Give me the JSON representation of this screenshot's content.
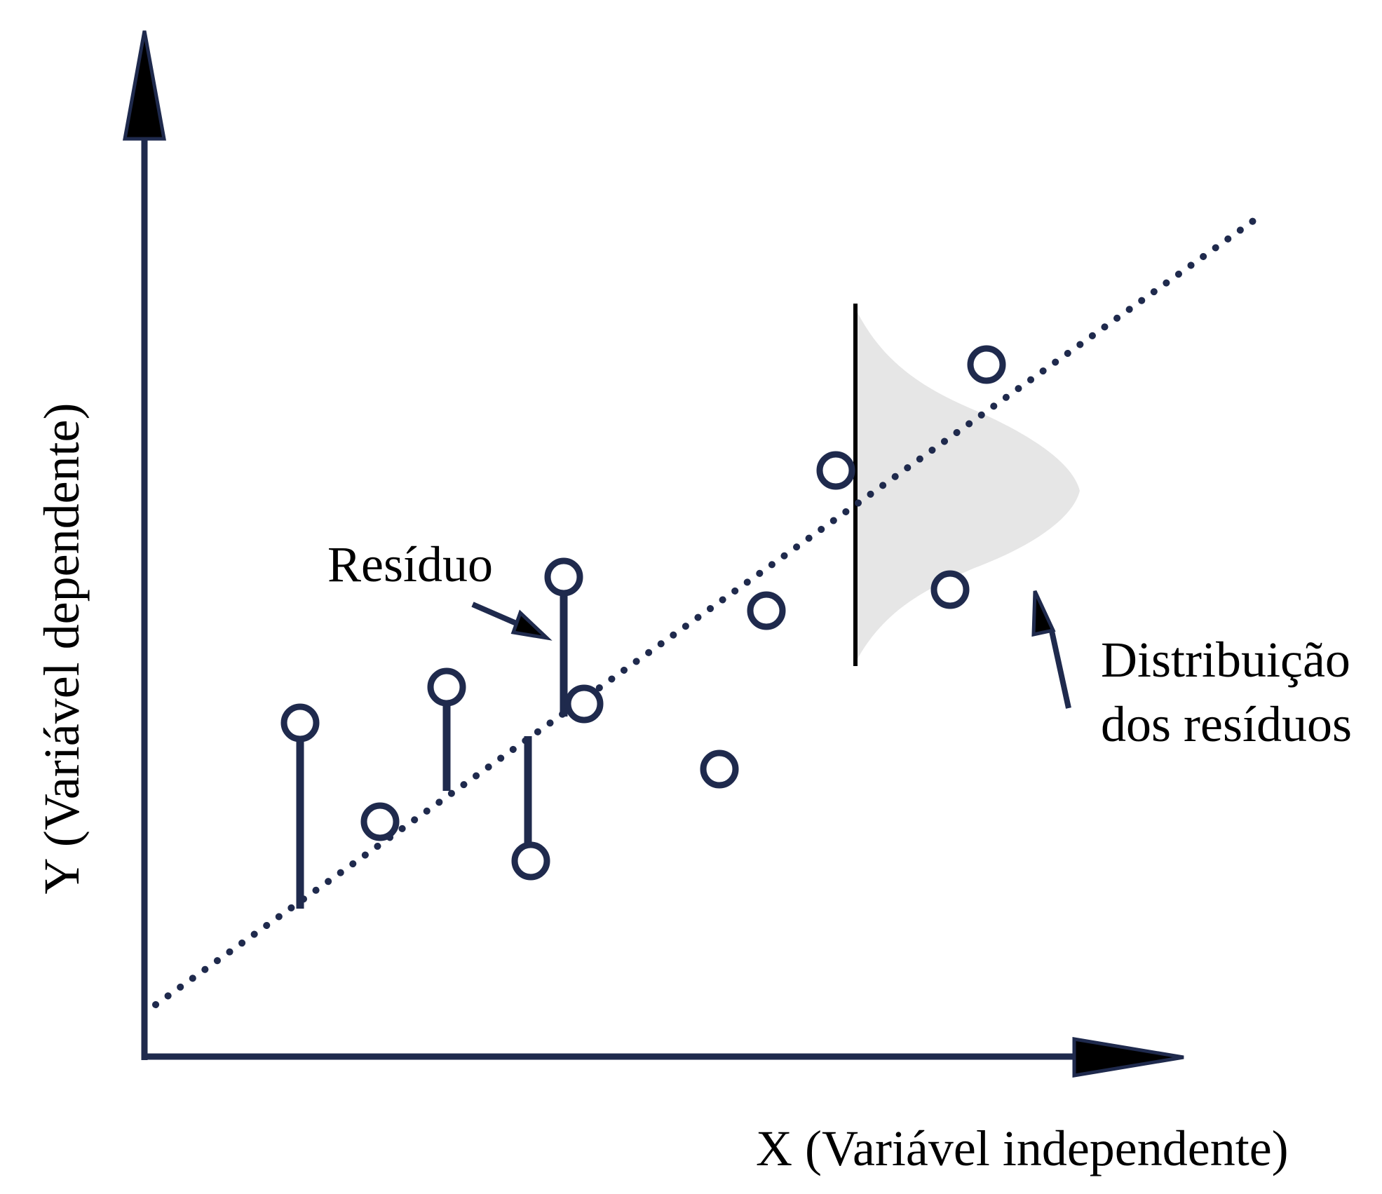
{
  "diagram": {
    "y_axis_label": "Y (Variável dependente)",
    "x_axis_label": "X (Variável independente)",
    "residual_label": "Resíduo",
    "distribution_label_line1": "Distribuição",
    "distribution_label_line2": "dos resíduos"
  },
  "colors": {
    "navy": "#1f2a4d",
    "curve_fill": "#e6e6e6",
    "background": "#ffffff"
  }
}
